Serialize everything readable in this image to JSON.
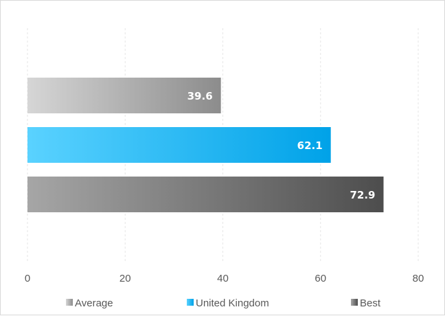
{
  "chart_data": {
    "type": "bar",
    "orientation": "horizontal",
    "categories": [
      "Average",
      "United Kingdom",
      "Best"
    ],
    "values": [
      39.6,
      62.1,
      72.9
    ],
    "xlim": [
      0,
      80
    ],
    "x_ticks": [
      0,
      20,
      40,
      60,
      80
    ],
    "grid": "vertical, dashed",
    "legend_position": "bottom",
    "data_labels": true,
    "series": [
      {
        "name": "Average",
        "value": 39.6,
        "color_start": "#d6d6d6",
        "color_end": "#8c8c8c"
      },
      {
        "name": "United Kingdom",
        "value": 62.1,
        "color_start": "#5ad2ff",
        "color_end": "#00a2e8"
      },
      {
        "name": "Best",
        "value": 72.9,
        "color_start": "#a6a6a6",
        "color_end": "#4d4d4d"
      }
    ]
  }
}
